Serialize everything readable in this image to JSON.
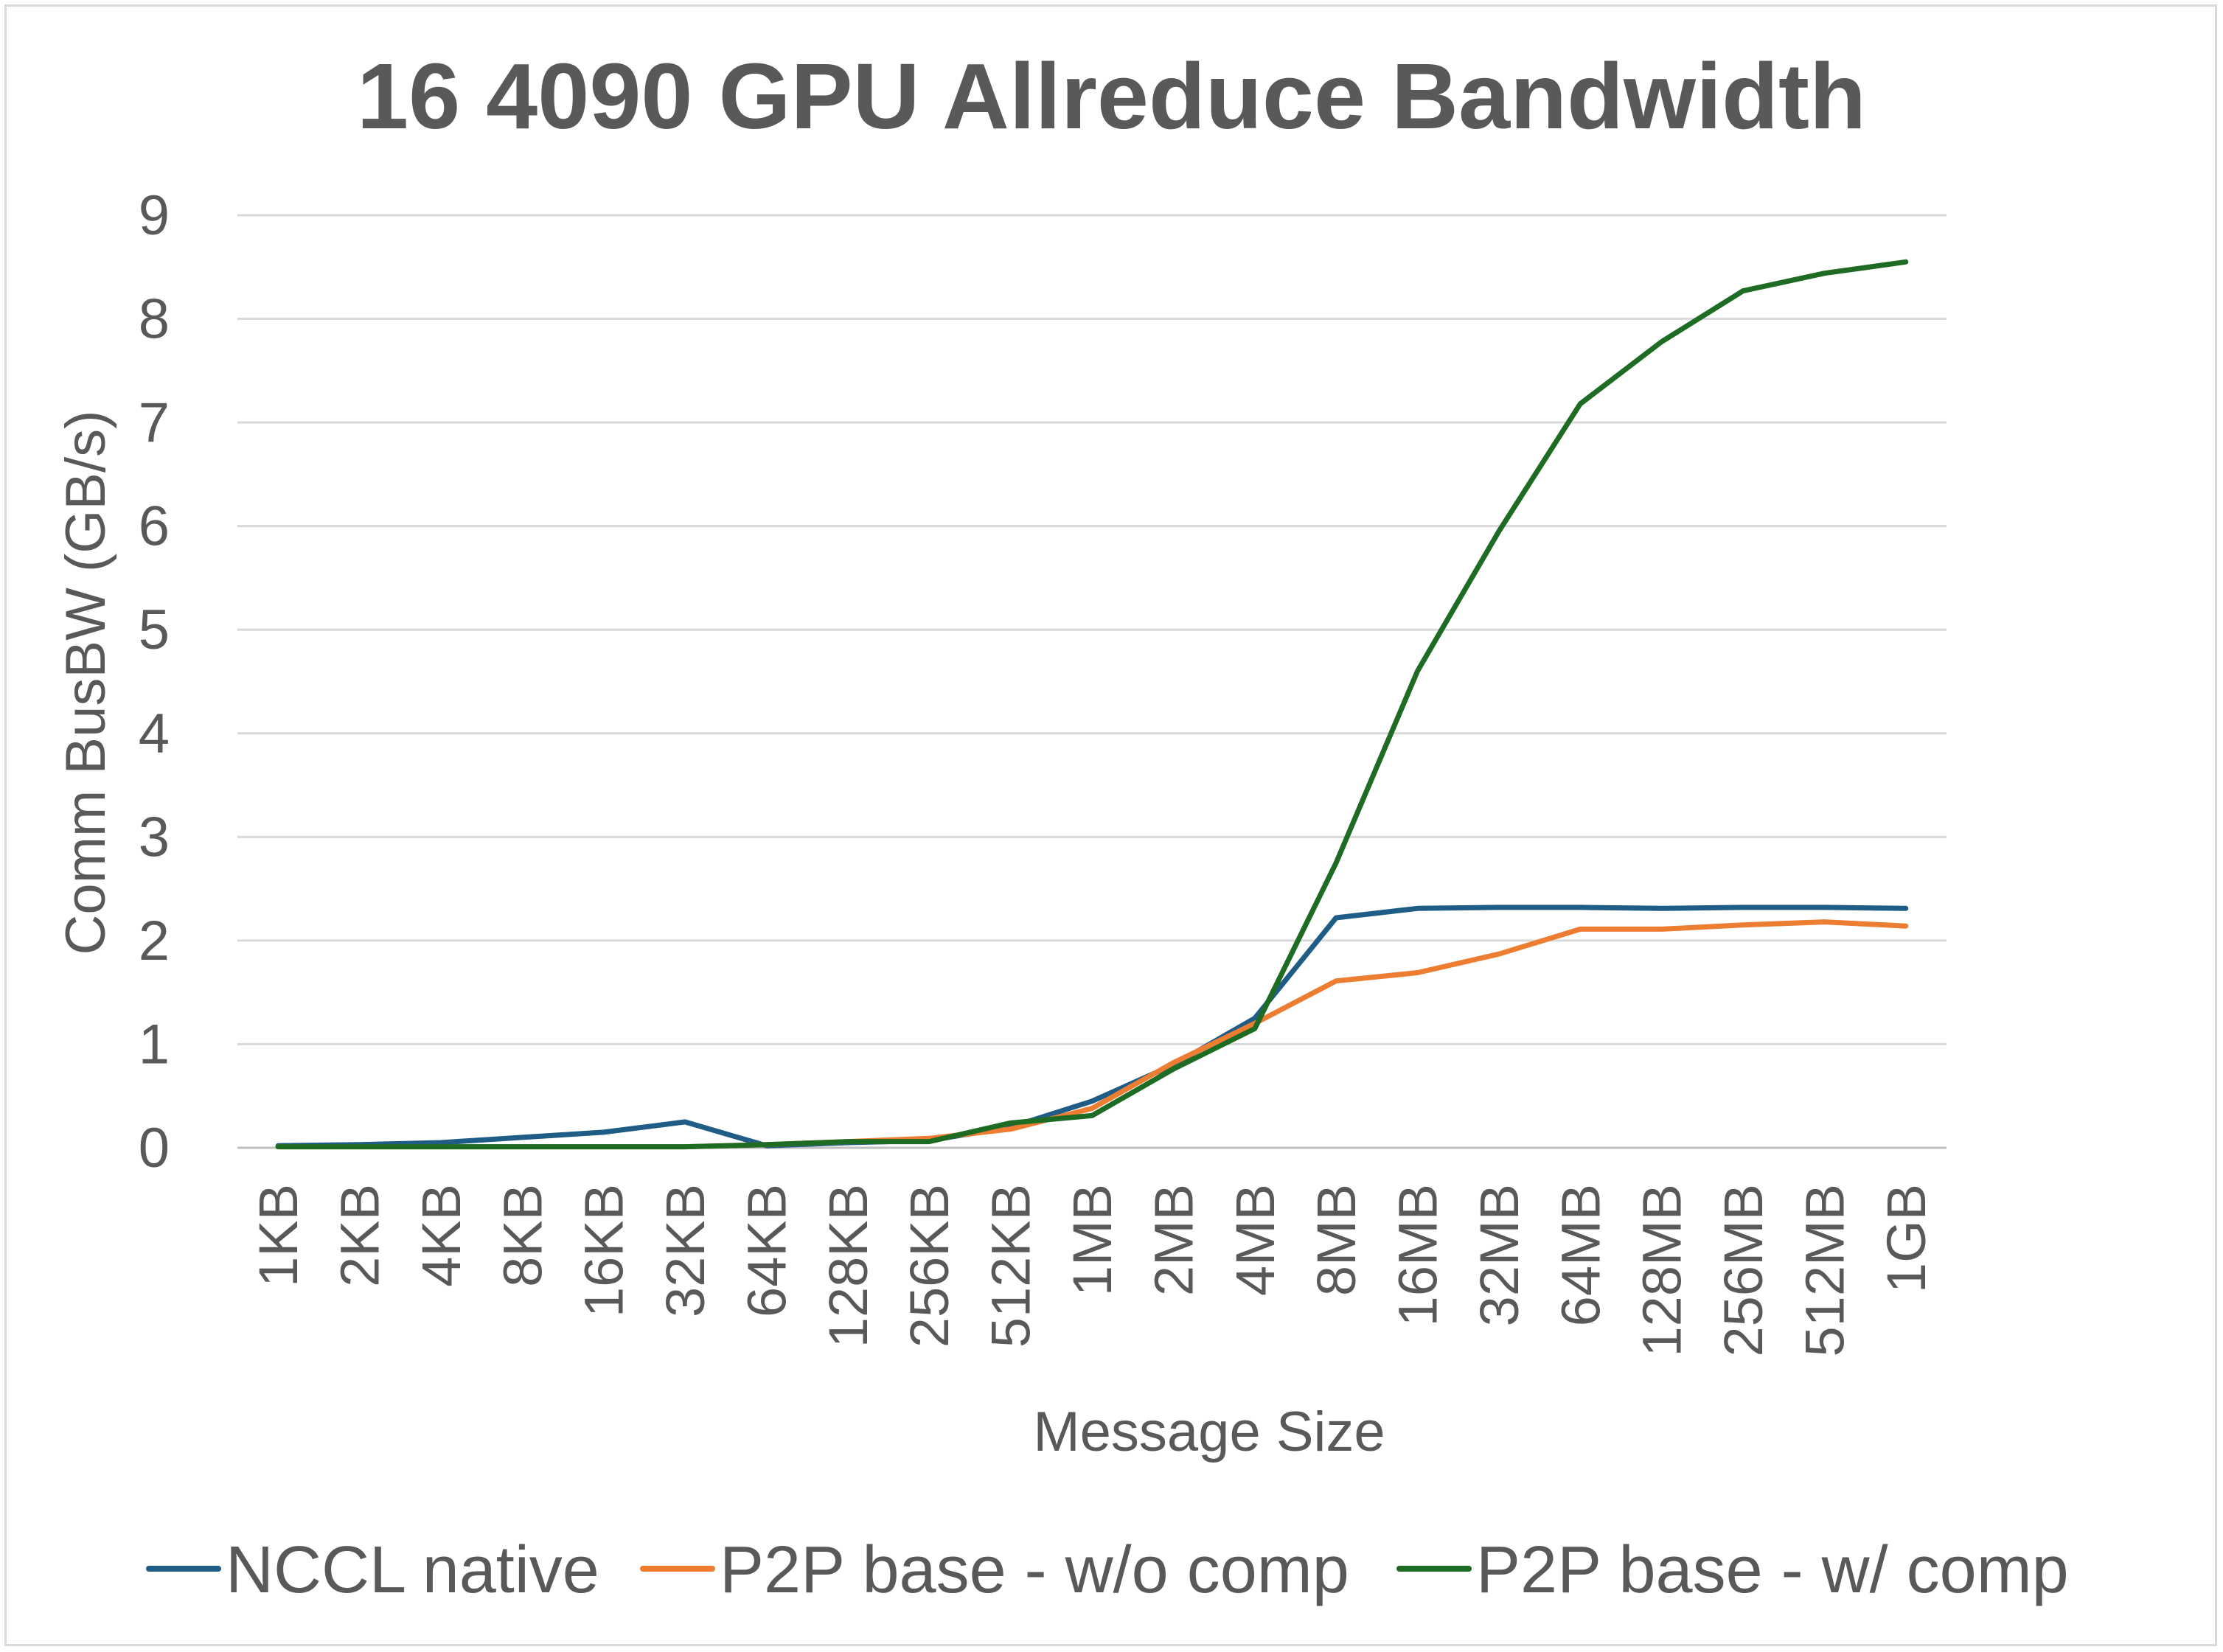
{
  "chart_data": {
    "type": "line",
    "title": "16 4090 GPU Allreduce Bandwidth",
    "xlabel": "Message Size",
    "ylabel": "Comm BusBW (GB/s)",
    "ylim": [
      0,
      9
    ],
    "yticks": [
      "0",
      "1",
      "2",
      "3",
      "4",
      "5",
      "6",
      "7",
      "8",
      "9"
    ],
    "grid": true,
    "legend_position": "bottom",
    "categories": [
      "1KB",
      "2KB",
      "4KB",
      "8KB",
      "16KB",
      "32KB",
      "64KB",
      "128KB",
      "256KB",
      "512KB",
      "1MB",
      "2MB",
      "4MB",
      "8MB",
      "16MB",
      "32MB",
      "64MB",
      "128MB",
      "256MB",
      "512MB",
      "1GB"
    ],
    "series": [
      {
        "name": "NCCL native",
        "color": "#1f5c86",
        "values": [
          0.02,
          0.03,
          0.05,
          0.1,
          0.15,
          0.25,
          0.02,
          0.05,
          0.07,
          0.2,
          0.45,
          0.8,
          1.25,
          2.22,
          2.31,
          2.32,
          2.32,
          2.31,
          2.32,
          2.32,
          2.31
        ]
      },
      {
        "name": "P2P base - w/o comp",
        "color": "#ed7d31",
        "values": [
          0.01,
          0.01,
          0.01,
          0.01,
          0.01,
          0.01,
          0.03,
          0.06,
          0.09,
          0.18,
          0.38,
          0.82,
          1.2,
          1.61,
          1.69,
          1.87,
          2.11,
          2.11,
          2.15,
          2.18,
          2.14
        ]
      },
      {
        "name": "P2P base - w/ comp",
        "color": "#1e6b23",
        "values": [
          0.01,
          0.01,
          0.01,
          0.01,
          0.01,
          0.01,
          0.03,
          0.06,
          0.06,
          0.24,
          0.31,
          0.76,
          1.15,
          2.75,
          4.6,
          5.95,
          7.18,
          7.78,
          8.27,
          8.44,
          8.55
        ]
      }
    ]
  }
}
